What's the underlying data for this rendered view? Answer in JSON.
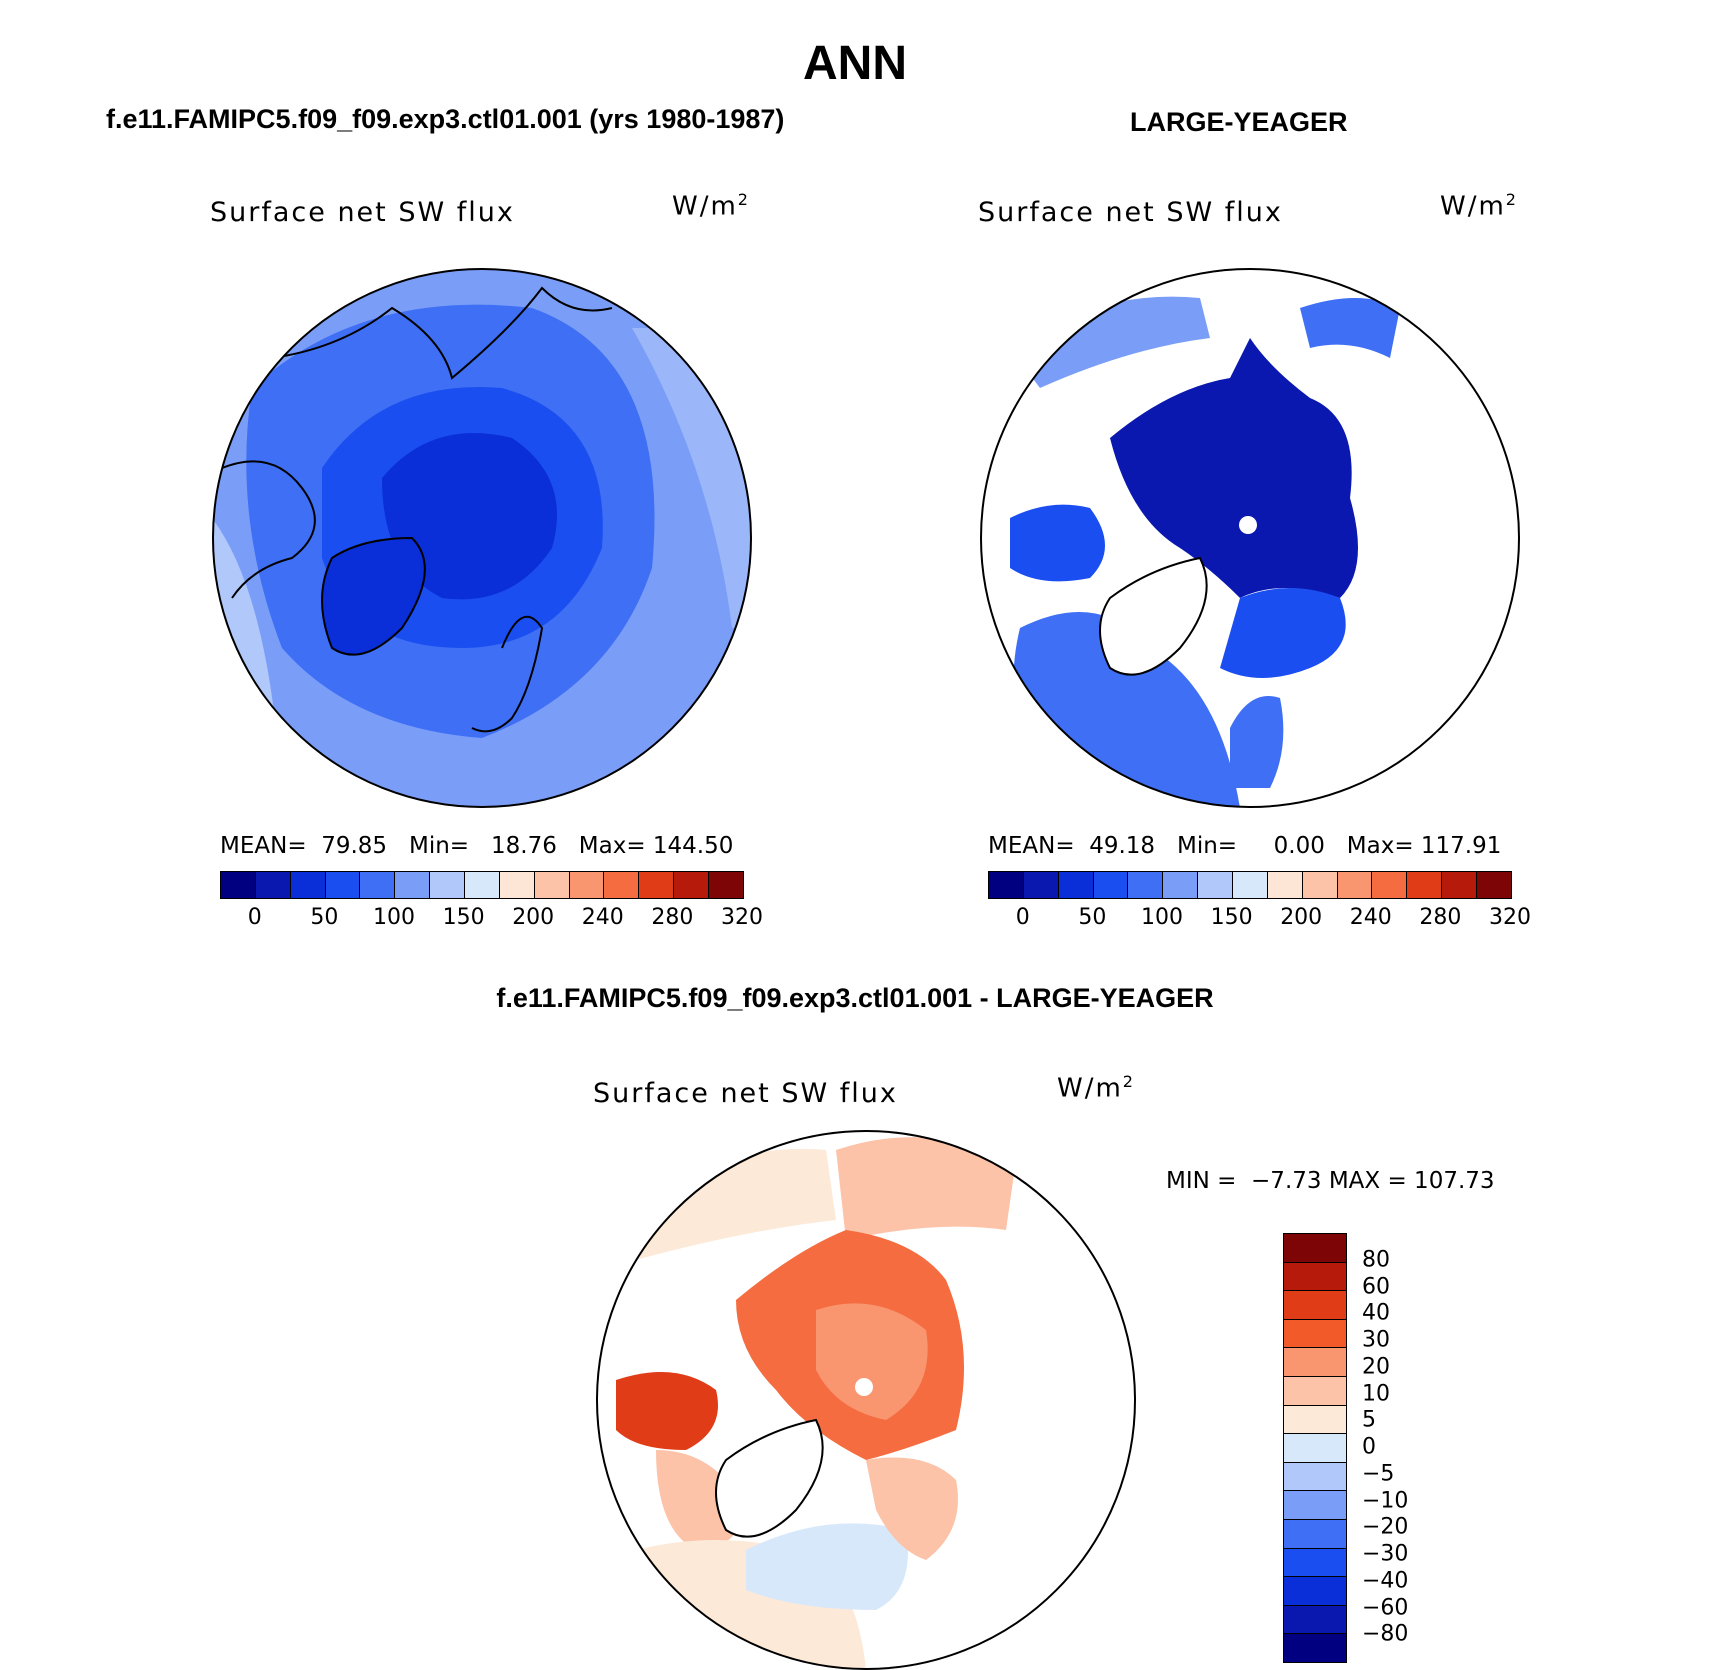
{
  "title": "ANN",
  "panels": [
    {
      "case_title": "f.e11.FAMIPC5.f09_f09.exp3.ctl01.001 (yrs 1980-1987)",
      "variable": "Surface net SW flux",
      "units": "W/m",
      "units_exp": "2",
      "stats": "MEAN=  79.85   Min=   18.76   Max= 144.50",
      "colorbar_colors": [
        "#000080",
        "#0a18b0",
        "#0a2fd8",
        "#1b4ef0",
        "#3f6ff5",
        "#7a9ef7",
        "#b0c8fa",
        "#d8e8fb",
        "#fde6d6",
        "#fcc3a8",
        "#f9966f",
        "#f46c3f",
        "#e03c18",
        "#b51a0a",
        "#7e0505"
      ],
      "colorbar_labels": [
        "0",
        "50",
        "100",
        "150",
        "200",
        "240",
        "280",
        "320"
      ]
    },
    {
      "case_title": "LARGE-YEAGER",
      "variable": "Surface net SW flux",
      "units": "W/m",
      "units_exp": "2",
      "stats": "MEAN=  49.18   Min=     0.00   Max= 117.91",
      "colorbar_colors": [
        "#000080",
        "#0a18b0",
        "#0a2fd8",
        "#1b4ef0",
        "#3f6ff5",
        "#7a9ef7",
        "#b0c8fa",
        "#d8e8fb",
        "#fde6d6",
        "#fcc3a8",
        "#f9966f",
        "#f46c3f",
        "#e03c18",
        "#b51a0a",
        "#7e0505"
      ],
      "colorbar_labels": [
        "0",
        "50",
        "100",
        "150",
        "200",
        "240",
        "280",
        "320"
      ]
    }
  ],
  "diff": {
    "case_title": "f.e11.FAMIPC5.f09_f09.exp3.ctl01.001 - LARGE-YEAGER",
    "variable": "Surface net SW flux",
    "units": "W/m",
    "units_exp": "2",
    "minmax": "MIN =  −7.73 MAX = 107.73",
    "colorbar_colors": [
      "#7e0505",
      "#b51a0a",
      "#e03c18",
      "#f25a2a",
      "#f9966f",
      "#fcc3a8",
      "#fde9d8",
      "#d8e8fb",
      "#b0c8fa",
      "#7a9ef7",
      "#3f6ff5",
      "#1b4ef0",
      "#0a2fd8",
      "#0a18b0",
      "#000080"
    ],
    "colorbar_labels": [
      "80",
      "60",
      "40",
      "30",
      "20",
      "10",
      "5",
      "0",
      "−5",
      "−10",
      "−20",
      "−30",
      "−40",
      "−60",
      "−80"
    ]
  }
}
